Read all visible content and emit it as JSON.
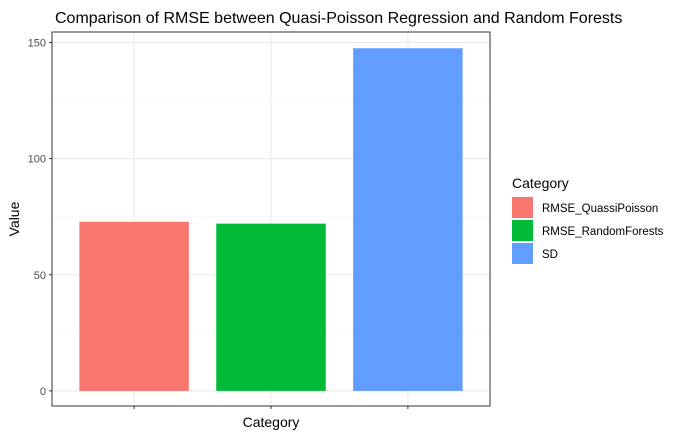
{
  "chart_data": {
    "type": "bar",
    "title": "Comparison of RMSE between Quasi-Poisson Regression and Random Forests",
    "xlabel": "Category",
    "ylabel": "Value",
    "categories": [
      "RMSE_QuassiPoisson",
      "RMSE_RandomForests",
      "SD"
    ],
    "values": [
      72.8,
      72.0,
      147.5
    ],
    "colors": [
      "#F8766D",
      "#00BA38",
      "#619CFF"
    ],
    "ylim": [
      -6.5,
      154.5
    ],
    "yticks": [
      0,
      50,
      100,
      150
    ],
    "ytick_labels": [
      "0",
      "50",
      "100",
      "150"
    ],
    "x_tick_labels_shown": false,
    "grid": true,
    "legend": {
      "title": "Category",
      "placement": "right",
      "items": [
        "RMSE_QuassiPoisson",
        "RMSE_RandomForests",
        "SD"
      ]
    }
  }
}
